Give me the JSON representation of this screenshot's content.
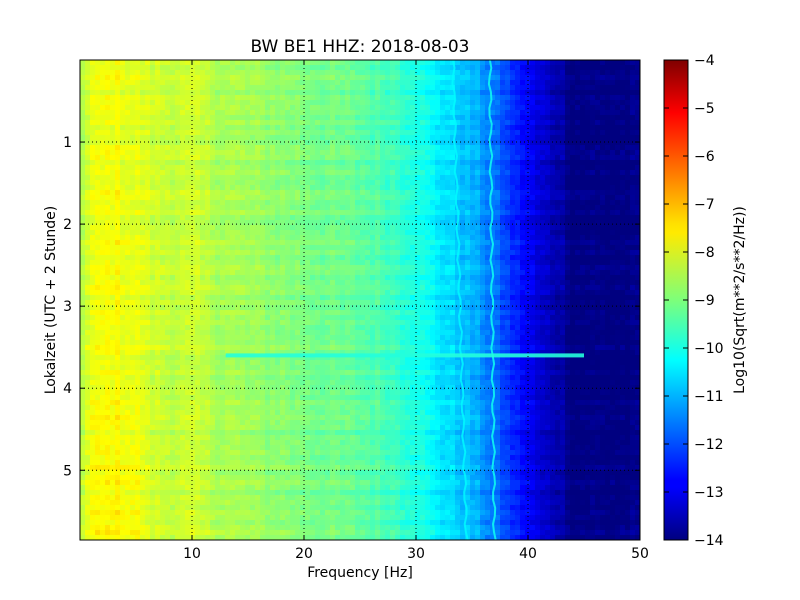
{
  "chart_data": {
    "type": "heatmap",
    "title": "BW BE1 HHZ: 2018-08-03",
    "xlabel": "Frequency [Hz]",
    "ylabel": "Lokalzeit (UTC + 2 Stunde)",
    "xlim": [
      0,
      50
    ],
    "ylim": [
      5.85,
      0
    ],
    "x_ticks": [
      10,
      20,
      30,
      40,
      50
    ],
    "y_ticks": [
      1,
      2,
      3,
      4,
      5
    ],
    "grid": true,
    "colorbar": {
      "label": "Log10(Sqrt(m**2/s**2/Hz))",
      "range": [
        -14,
        -4
      ],
      "ticks": [
        -4,
        -5,
        -6,
        -7,
        -8,
        -9,
        -10,
        -11,
        -12,
        -13,
        -14
      ],
      "colormap": "jet"
    },
    "z_profile_vs_frequency": {
      "frequency_hz": [
        0,
        1,
        3,
        5,
        8,
        10,
        12,
        15,
        20,
        25,
        28,
        30,
        31,
        32,
        33,
        34,
        35,
        36,
        37,
        38,
        39,
        40,
        41,
        42,
        43,
        43.5,
        44,
        50
      ],
      "value": [
        -8.6,
        -8.1,
        -7.9,
        -8.1,
        -8.3,
        -8.3,
        -8.5,
        -8.7,
        -9.0,
        -9.3,
        -9.6,
        -9.9,
        -10.2,
        -10.4,
        -10.6,
        -10.8,
        -11.0,
        -11.3,
        -11.7,
        -12.1,
        -12.5,
        -12.8,
        -13.2,
        -13.4,
        -13.6,
        -13.8,
        -14.0,
        -14.0
      ]
    },
    "narrow_band_lines": [
      {
        "start_hz": 33.3,
        "end_hz": 34.5,
        "value": -10.3
      },
      {
        "start_hz": 36.6,
        "end_hz": 37.0,
        "value": -10.1
      }
    ],
    "transient_event": {
      "time": 3.6,
      "freq_range_hz": [
        13,
        45
      ],
      "value": -9.9
    }
  }
}
